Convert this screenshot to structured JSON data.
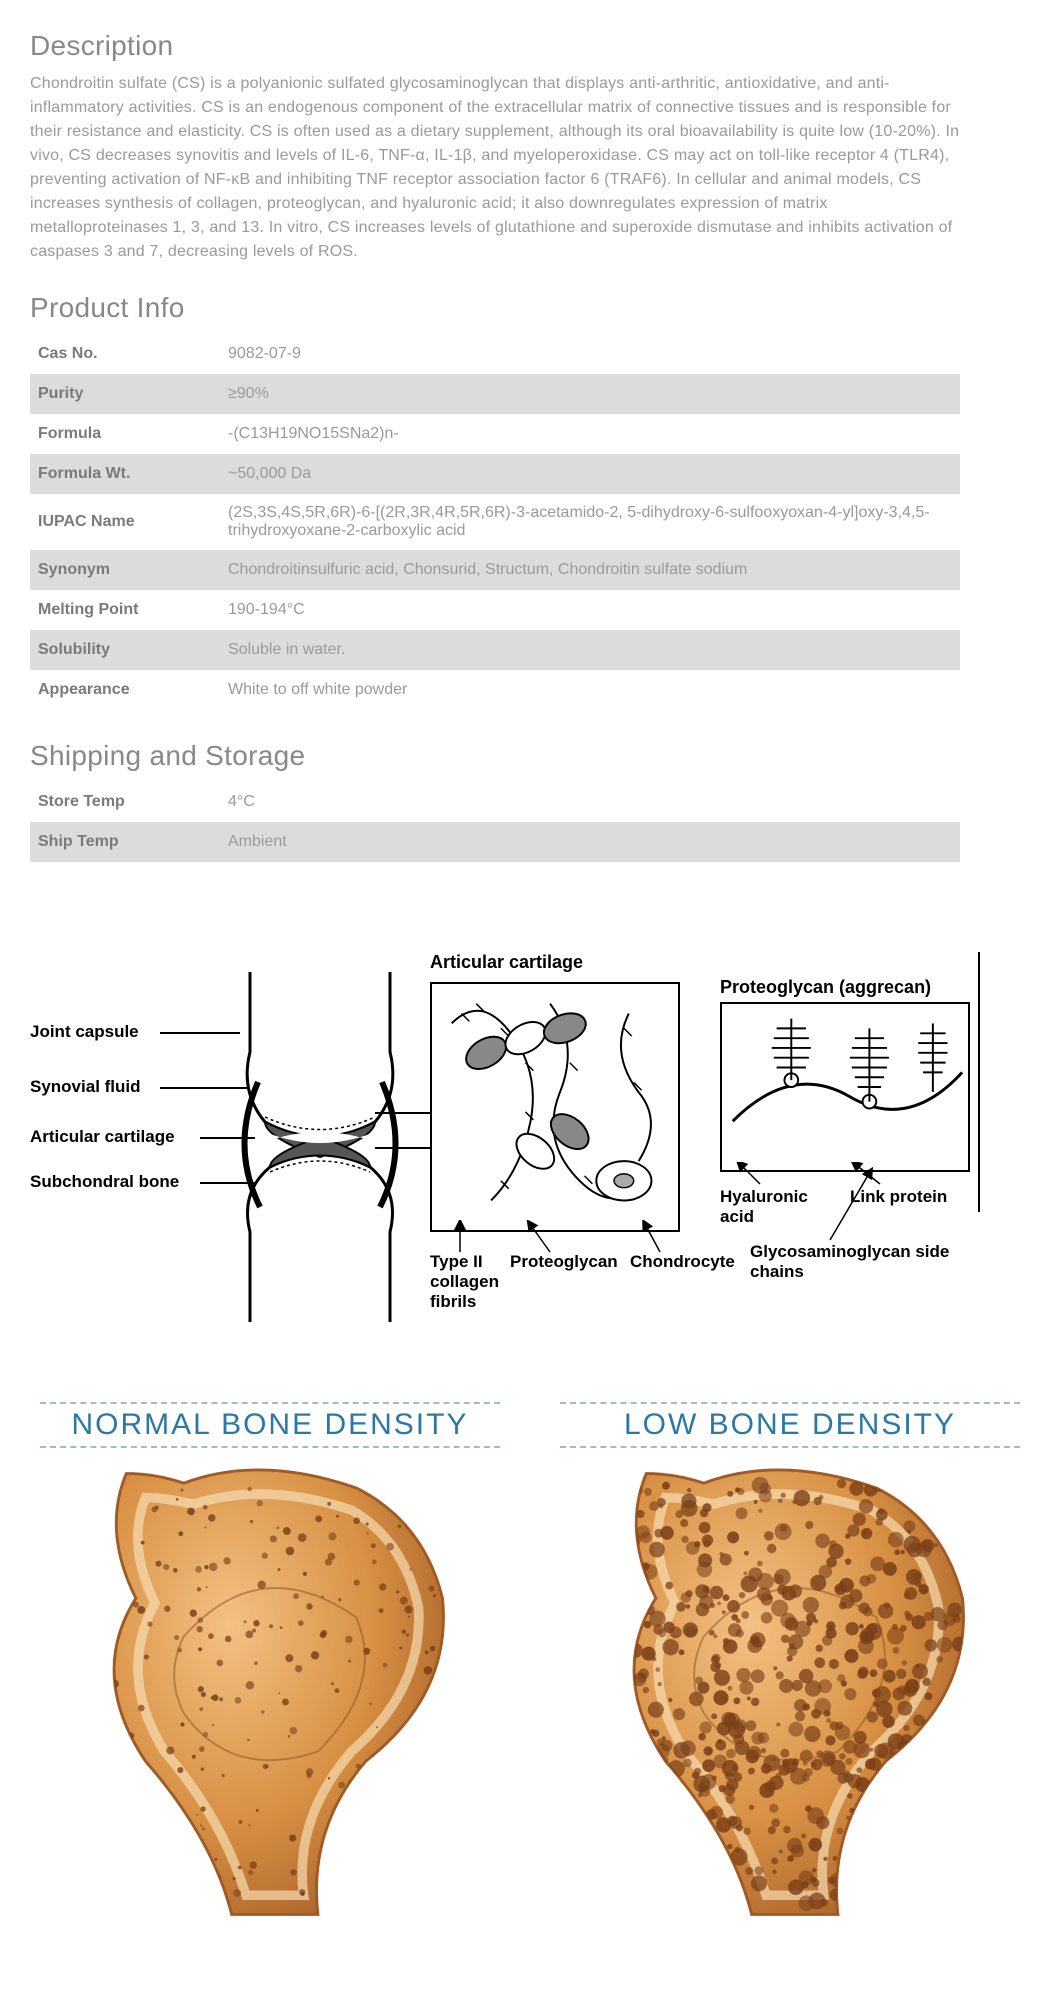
{
  "description": {
    "title": "Description",
    "text": "Chondroitin sulfate (CS) is a polyanionic sulfated glycosaminoglycan that displays anti-arthritic, antioxidative, and anti-inflammatory activities. CS is an endogenous component of the extracellular matrix of connective tissues and is responsible for their resistance and elasticity. CS is often used as a dietary supplement, although its oral bioavailability is quite low (10-20%). In vivo, CS decreases synovitis and levels of IL-6, TNF-α, IL-1β, and myeloperoxidase. CS may act on toll-like receptor 4 (TLR4), preventing activation of NF-κB and inhibiting TNF receptor association factor 6 (TRAF6). In cellular and animal models, CS increases synthesis of collagen, proteoglycan, and hyaluronic acid; it also downregulates expression of matrix metalloproteinases 1, 3, and 13. In vitro, CS increases levels of glutathione and superoxide dismutase and inhibits activation of caspases 3 and 7, decreasing levels of ROS."
  },
  "product_info": {
    "title": "Product Info",
    "rows": [
      {
        "key": "Cas No.",
        "value": "9082-07-9"
      },
      {
        "key": "Purity",
        "value": "≥90%"
      },
      {
        "key": "Formula",
        "value": "-(C13H19NO15SNa2)n-"
      },
      {
        "key": "Formula Wt.",
        "value": "~50,000 Da"
      },
      {
        "key": "IUPAC Name",
        "value": "(2S,3S,4S,5R,6R)-6-[(2R,3R,4R,5R,6R)-3-acetamido-2, 5-dihydroxy-6-sulfooxyoxan-4-yl]oxy-3,4,5-trihydroxyoxane-2-carboxylic acid"
      },
      {
        "key": "Synonym",
        "value": "Chondroitinsulfuric acid, Chonsurid, Structum, Chondroitin sulfate sodium"
      },
      {
        "key": "Melting Point",
        "value": "190-194°C"
      },
      {
        "key": "Solubility",
        "value": "Soluble in water."
      },
      {
        "key": "Appearance",
        "value": "White to off white powder"
      }
    ]
  },
  "shipping": {
    "title": "Shipping and Storage",
    "rows": [
      {
        "key": "Store Temp",
        "value": "4°C"
      },
      {
        "key": "Ship Temp",
        "value": "Ambient"
      }
    ]
  },
  "diagram": {
    "title_top": "Articular cartilage",
    "left_labels": {
      "joint_capsule": "Joint capsule",
      "synovial_fluid": "Synovial fluid",
      "articular_cartilage": "Articular cartilage",
      "subchondral_bone": "Subchondral bone"
    },
    "bottom_labels": {
      "type2": "Type II\ncollagen\nfibrils",
      "proteoglycan": "Proteoglycan",
      "chondrocyte": "Chondrocyte"
    },
    "right_labels": {
      "aggrecan": "Proteoglycan (aggrecan)",
      "hyaluronic": "Hyaluronic\nacid",
      "link_protein": "Link protein",
      "gag_chains": "Glycosaminoglycan side\nchains"
    },
    "colors": {
      "stroke": "#000000",
      "fill_bone": "#ffffff",
      "fill_cartilage": "#b8b8b8",
      "fill_fluid": "#ffffff"
    }
  },
  "bone_density": {
    "left_title": "NORMAL BONE DENSITY",
    "right_title": "LOW BONE DENSITY",
    "title_color": "#2b78a7",
    "dash_color": "#9ebcce",
    "bone_fill": "#d89044",
    "bone_edge": "#a05a24",
    "pore_color": "#7b4018",
    "normal_pore_density": 0.35,
    "low_pore_density": 0.95
  }
}
